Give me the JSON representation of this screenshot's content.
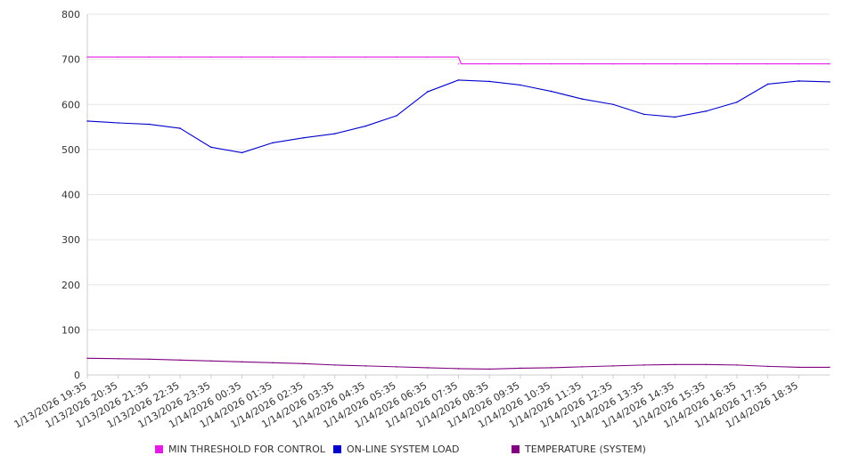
{
  "chart_data": {
    "type": "line",
    "title": "",
    "xlabel": "",
    "ylabel": "",
    "ylim": [
      0,
      800
    ],
    "y_ticks": [
      "0",
      "100",
      "200",
      "300",
      "400",
      "500",
      "600",
      "700",
      "800"
    ],
    "x_tick_labels": [
      "1/13/2026 19:35",
      "1/13/2026 20:35",
      "1/13/2026 21:35",
      "1/13/2026 22:35",
      "1/13/2026 23:35",
      "1/14/2026 00:35",
      "1/14/2026 01:35",
      "1/14/2026 02:35",
      "1/14/2026 03:35",
      "1/14/2026 04:35",
      "1/14/2026 05:35",
      "1/14/2026 06:35",
      "1/14/2026 07:35",
      "1/14/2026 08:35",
      "1/14/2026 09:35",
      "1/14/2026 10:35",
      "1/14/2026 11:35",
      "1/14/2026 12:35",
      "1/14/2026 13:35",
      "1/14/2026 14:35",
      "1/14/2026 15:35",
      "1/14/2026 16:35",
      "1/14/2026 17:35",
      "1/14/2026 18:35"
    ],
    "x": [
      "1/13/2026 19:35",
      "1/13/2026 20:35",
      "1/13/2026 21:35",
      "1/13/2026 22:35",
      "1/13/2026 23:35",
      "1/14/2026 00:35",
      "1/14/2026 01:35",
      "1/14/2026 02:35",
      "1/14/2026 03:35",
      "1/14/2026 04:35",
      "1/14/2026 05:35",
      "1/14/2026 06:35",
      "1/14/2026 07:35",
      "1/14/2026 08:35",
      "1/14/2026 09:35",
      "1/14/2026 10:35",
      "1/14/2026 11:35",
      "1/14/2026 12:35",
      "1/14/2026 13:35",
      "1/14/2026 14:35",
      "1/14/2026 15:35",
      "1/14/2026 16:35",
      "1/14/2026 17:35",
      "1/14/2026 18:35",
      "1/14/2026 19:35"
    ],
    "series": [
      {
        "name": "MIN THRESHOLD FOR CONTROL",
        "color": "#e619e6",
        "values": [
          705,
          705,
          705,
          705,
          705,
          705,
          705,
          705,
          705,
          705,
          705,
          705,
          690,
          690,
          690,
          690,
          690,
          690,
          690,
          690,
          690,
          690,
          690,
          690,
          690
        ]
      },
      {
        "name": "ON-LINE SYSTEM LOAD",
        "color": "#0000cc",
        "values": [
          563,
          559,
          556,
          547,
          505,
          493,
          515,
          526,
          535,
          552,
          575,
          628,
          654,
          651,
          643,
          629,
          612,
          600,
          578,
          572,
          585,
          605,
          645,
          652,
          650
        ]
      },
      {
        "name": "TEMPERATURE (SYSTEM)",
        "color": "#800080",
        "values": [
          37,
          36,
          35,
          33,
          31,
          29,
          27,
          25,
          22,
          20,
          18,
          16,
          14,
          13,
          15,
          16,
          18,
          20,
          22,
          23,
          23,
          22,
          19,
          17,
          17
        ]
      }
    ],
    "grid": true,
    "legend_position": "bottom"
  }
}
